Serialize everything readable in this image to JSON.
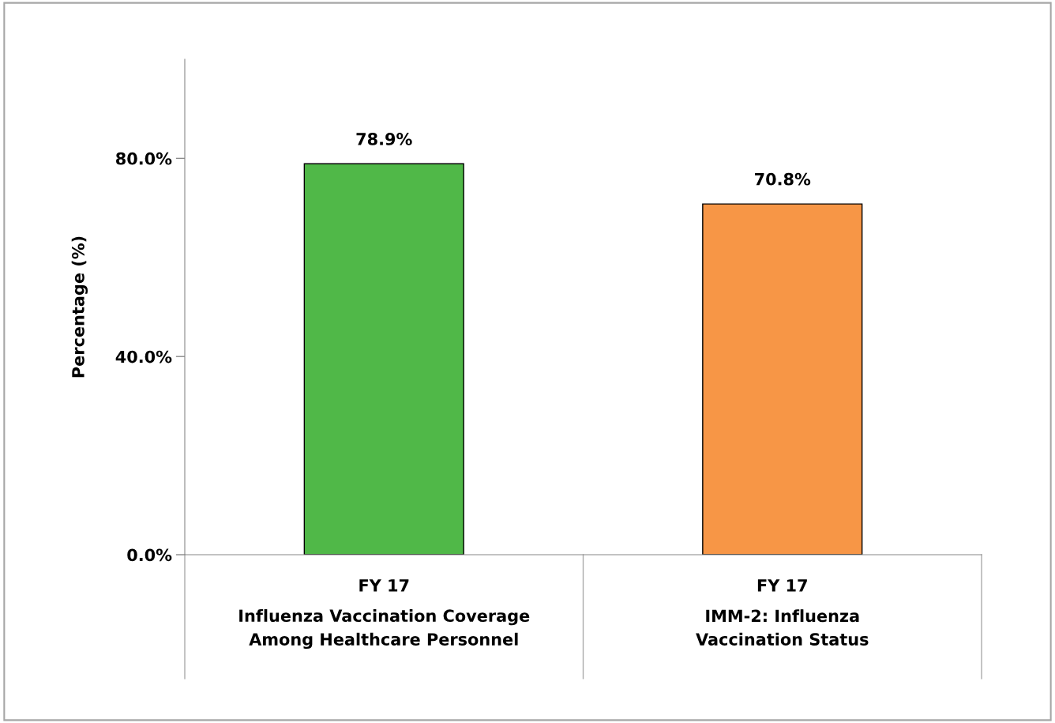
{
  "chart_data": {
    "type": "bar",
    "ylabel": "Percentage (%)",
    "categories": [
      "FY 17",
      "FY 17"
    ],
    "values": [
      78.9,
      70.8
    ],
    "colors": [
      "#50b848",
      "#f79646"
    ],
    "value_labels": [
      "78.9%",
      "70.8%"
    ],
    "ylim": [
      0,
      100
    ],
    "yticks": [
      {
        "value": 0,
        "label": "0.0%"
      },
      {
        "value": 40,
        "label": "40.0%"
      },
      {
        "value": 80,
        "label": "80.0%"
      }
    ],
    "annotations": [
      "Influenza Vaccination Coverage\nAmong Healthcare Personnel",
      "IMM-2: Influenza\nVaccination Status"
    ],
    "grid": false,
    "legend": false
  }
}
